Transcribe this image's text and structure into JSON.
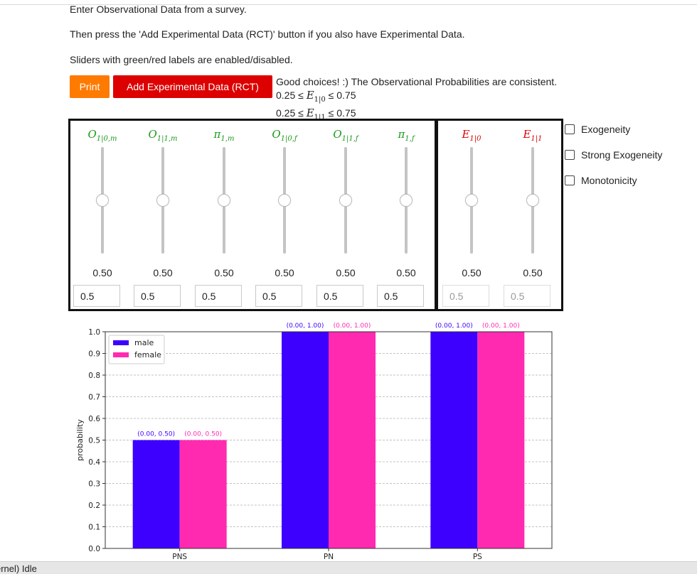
{
  "intro": {
    "line1": "Enter Observational Data from a survey.",
    "line2": "Then press the 'Add Experimental Data (RCT)' button if you also have Experimental Data.",
    "line3": "Sliders with green/red labels are enabled/disabled."
  },
  "buttons": {
    "print": "Print",
    "add": "Add Experimental Data (RCT)"
  },
  "status": {
    "message": "Good choices! :) The Observational Probabilities are consistent.",
    "bounds": [
      {
        "lower": "0.25 ≤",
        "var": "E",
        "sub": "1|0",
        "upper": "≤ 0.75"
      },
      {
        "lower": "0.25 ≤",
        "var": "E",
        "sub": "1|1",
        "upper": "≤ 0.75"
      }
    ]
  },
  "sliders": [
    {
      "var": "O",
      "sub": "1|0,m",
      "value_label": "0.50",
      "input": "0.5",
      "enabled": true
    },
    {
      "var": "O",
      "sub": "1|1,m",
      "value_label": "0.50",
      "input": "0.5",
      "enabled": true
    },
    {
      "var": "π",
      "sub": "1,m",
      "value_label": "0.50",
      "input": "0.5",
      "enabled": true
    },
    {
      "var": "O",
      "sub": "1|0,f",
      "value_label": "0.50",
      "input": "0.5",
      "enabled": true
    },
    {
      "var": "O",
      "sub": "1|1,f",
      "value_label": "0.50",
      "input": "0.5",
      "enabled": true
    },
    {
      "var": "π",
      "sub": "1,f",
      "value_label": "0.50",
      "input": "0.5",
      "enabled": true
    },
    {
      "var": "E",
      "sub": "1|0",
      "value_label": "0.50",
      "input": "0.5",
      "enabled": false
    },
    {
      "var": "E",
      "sub": "1|1",
      "value_label": "0.50",
      "input": "0.5",
      "enabled": false
    }
  ],
  "checkboxes": [
    {
      "label": "Exogeneity",
      "checked": false
    },
    {
      "label": "Strong Exogeneity",
      "checked": false
    },
    {
      "label": "Monotonicity",
      "checked": false
    }
  ],
  "colors": {
    "enabled": "#1a9a1a",
    "disabled": "#e00000",
    "print": "#ff7a00",
    "add": "#dd0000"
  },
  "chart_data": {
    "type": "bar",
    "categories": [
      "PNS",
      "PN",
      "PS"
    ],
    "ylabel": "probability",
    "ylim": [
      0,
      1.0
    ],
    "yticks": [
      "0.0",
      "0.1",
      "0.2",
      "0.3",
      "0.4",
      "0.5",
      "0.6",
      "0.7",
      "0.8",
      "0.9",
      "1.0"
    ],
    "grid": true,
    "legend_position": "top-left",
    "series": [
      {
        "name": "male",
        "color": "#3d00ff",
        "values": [
          0.5,
          1.0,
          1.0
        ],
        "labels": [
          "(0.00, 0.50)",
          "(0.00, 1.00)",
          "(0.00, 1.00)"
        ]
      },
      {
        "name": "female",
        "color": "#ff2ab0",
        "values": [
          0.5,
          1.0,
          1.0
        ],
        "labels": [
          "(0.00, 0.50)",
          "(0.00, 1.00)",
          "(0.00, 1.00)"
        ]
      }
    ]
  },
  "statusbar": {
    "kernel": "ernel) Idle"
  }
}
